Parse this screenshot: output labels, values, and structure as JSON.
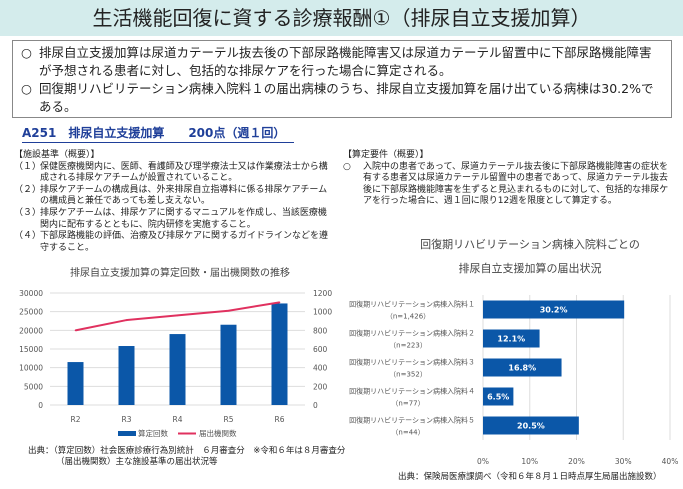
{
  "title": "生活機能回復に資する診療報酬①（排尿自立支援加算）",
  "summary": [
    {
      "mark": "○",
      "text": "排尿自立支援加算は尿道カテーテル抜去後の下部尿路機能障害又は尿道カテーテル留置中に下部尿路機能障害が予想される患者に対し、包括的な排尿ケアを行った場合に算定される。"
    },
    {
      "mark": "○",
      "text": "回復期リハビリテーション病棟入院料１の届出病棟のうち、排尿自立支援加算を届け出ている病棟は30.2%である。"
    }
  ],
  "code_header": "A251　排尿自立支援加算　　200点（週１回）",
  "facility_criteria": {
    "heading": "【施設基準（概要）】",
    "items": [
      {
        "num": "（１）",
        "text": "保健医療機関内に、医師、看護師及び理学療法士又は作業療法士から構成される排尿ケアチームが設置されていること。"
      },
      {
        "num": "（２）",
        "text": "排尿ケアチームの構成員は、外来排尿自立指導料に係る排尿ケアチームの構成員と兼任であっても差し支えない。"
      },
      {
        "num": "（３）",
        "text": "排尿ケアチームは、排尿ケアに関するマニュアルを作成し、当該医療機関内に配布するとともに、院内研修を実施すること。"
      },
      {
        "num": "（４）",
        "text": "下部尿路機能の評価、治療及び排尿ケアに関するガイドラインなどを遵守すること。"
      }
    ]
  },
  "calc_requirements": {
    "heading": "【算定要件（概要）】",
    "mark": "○",
    "text": "入院中の患者であって、尿道カテーテル抜去後に下部尿路機能障害の症状を有する患者又は尿道カテーテル留置中の患者であって、尿道カテーテル抜去後に下部尿路機能障害を生ずると見込まれるものに対して、包括的な排尿ケアを行った場合に、週１回に限り12週を限度として算定する。"
  },
  "left_source": [
    "出典：（算定回数）社会医療診療行為別統計　６月審査分　※令和６年は８月審査分",
    "（届出機関数）主な施設基準の届出状況等"
  ],
  "right_source": "出典：保険局医療課調べ（令和６年８月１日時点厚生局届出施設数）",
  "colors": {
    "bar": "#0b57a8",
    "line": "#e0315f",
    "title_band": "#d4ecec",
    "header": "#1f3f99"
  },
  "chart_data": [
    {
      "type": "bar+line",
      "title": "排尿自立支援加算の算定回数・届出機関数の推移",
      "categories": [
        "R2",
        "R3",
        "R4",
        "R5",
        "R6"
      ],
      "series": [
        {
          "name": "算定回数",
          "type": "bar",
          "axis": "left",
          "values": [
            11500,
            15800,
            19000,
            21500,
            27200
          ]
        },
        {
          "name": "届出機関数",
          "type": "line",
          "axis": "right",
          "values": [
            800,
            910,
            960,
            1010,
            1100
          ]
        }
      ],
      "ylim_left": [
        0,
        30000
      ],
      "yticks_left": [
        "0",
        "5000",
        "10000",
        "15000",
        "20000",
        "25000",
        "30000"
      ],
      "ylim_right": [
        0,
        1200
      ],
      "yticks_right": [
        "0",
        "200",
        "400",
        "600",
        "800",
        "1000",
        "1200"
      ],
      "legend": "bottom",
      "grid": true
    },
    {
      "type": "bar",
      "orientation": "horizontal",
      "title": [
        "回復期リハビリテーション病棟入院料ごとの",
        "排尿自立支援加算の届出状況"
      ],
      "categories": [
        {
          "name": "回復期リハビリテーション病棟入院料１",
          "n": "（n=1,426）"
        },
        {
          "name": "回復期リハビリテーション病棟入院料２",
          "n": "（n=223）"
        },
        {
          "name": "回復期リハビリテーション病棟入院料３",
          "n": "（n=352）"
        },
        {
          "name": "回復期リハビリテーション病棟入院料４",
          "n": "（n=77）"
        },
        {
          "name": "回復期リハビリテーション病棟入院料５",
          "n": "（n=44）"
        }
      ],
      "values": [
        30.2,
        12.1,
        16.8,
        6.5,
        20.5
      ],
      "labels": [
        "30.2%",
        "12.1%",
        "16.8%",
        "6.5%",
        "20.5%"
      ],
      "xlim": [
        0,
        40
      ],
      "xticks": [
        "0%",
        "10%",
        "20%",
        "30%",
        "40%"
      ],
      "grid": true
    }
  ]
}
